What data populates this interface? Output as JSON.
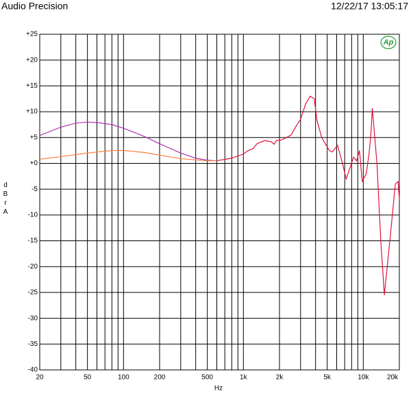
{
  "header": {
    "title": "Audio Precision",
    "timestamp": "12/22/17 13:05:17",
    "logo": "Ap"
  },
  "chart_data": {
    "type": "line",
    "log_x": true,
    "grid": true,
    "ylabel": "dBrA",
    "xlabel": "Hz",
    "xlim": [
      20,
      20000
    ],
    "ylim": [
      -40,
      25
    ],
    "xticks": [
      20,
      50,
      100,
      200,
      500,
      {
        "value": 1000,
        "label": "1k"
      },
      {
        "value": 2000,
        "label": "2k"
      },
      {
        "value": 5000,
        "label": "5k"
      },
      {
        "value": 10000,
        "label": "10k"
      },
      {
        "value": 20000,
        "label": "20k"
      }
    ],
    "xgrid": [
      30,
      40,
      60,
      70,
      80,
      90,
      300,
      400,
      600,
      700,
      800,
      900,
      3000,
      4000,
      6000,
      7000,
      8000,
      9000
    ],
    "yticks": [
      {
        "value": 25,
        "label": "+25"
      },
      {
        "value": 20,
        "label": "+20"
      },
      {
        "value": 15,
        "label": "+15"
      },
      {
        "value": 10,
        "label": "+10"
      },
      {
        "value": 5,
        "label": "+5"
      },
      {
        "value": 0,
        "label": "+0"
      },
      -5,
      -10,
      -15,
      -20,
      -25,
      -30,
      -35,
      -40
    ],
    "series": [
      {
        "color": "#b030b0",
        "x": [
          20,
          25,
          30,
          40,
          50,
          60,
          80,
          100,
          150,
          200,
          300,
          400,
          500,
          600
        ],
        "values": [
          5.4,
          6.3,
          7.0,
          7.8,
          8.0,
          7.9,
          7.5,
          6.8,
          5.2,
          3.8,
          2.0,
          1.0,
          0.6,
          0.5
        ]
      },
      {
        "color": "#ff8040",
        "x": [
          20,
          30,
          50,
          80,
          100,
          150,
          200,
          300,
          500,
          600
        ],
        "values": [
          0.8,
          1.3,
          2.0,
          2.5,
          2.5,
          2.1,
          1.6,
          0.9,
          0.5,
          0.5
        ]
      },
      {
        "color": "#e0103a",
        "x": [
          600,
          800,
          1000,
          1100,
          1200,
          1300,
          1500,
          1700,
          1800,
          1900,
          2000,
          2200,
          2500,
          2800,
          3000,
          3300,
          3600,
          3900,
          4100,
          4500,
          5200,
          5500,
          6100,
          6700,
          7200,
          8300,
          8800,
          9300,
          9800,
          10600,
          11200,
          11600,
          11900,
          13000,
          14000,
          15000,
          17000,
          18500,
          19500,
          20000
        ],
        "values": [
          0.5,
          1.0,
          1.8,
          2.5,
          2.8,
          3.8,
          4.4,
          4.2,
          3.7,
          4.5,
          4.4,
          4.8,
          5.5,
          7.5,
          8.5,
          11.5,
          13.0,
          12.5,
          8.4,
          5.0,
          2.5,
          2.2,
          3.5,
          0.0,
          -3.0,
          1.2,
          0.5,
          2.5,
          -3.5,
          -2.0,
          2.0,
          6.0,
          10.7,
          0.0,
          -15.0,
          -25.5,
          -13.0,
          -4.0,
          -3.5,
          -7.0
        ]
      }
    ]
  }
}
